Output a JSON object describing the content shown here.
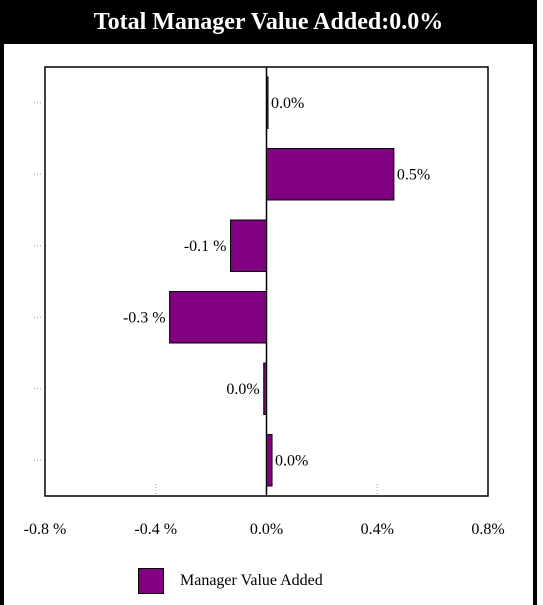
{
  "title": "Total Manager Value Added:0.0%",
  "colors": {
    "bar": "#800080",
    "title_bg": "#000000",
    "title_fg": "#ffffff"
  },
  "chart_data": {
    "type": "bar",
    "orientation": "horizontal",
    "series": [
      {
        "name": "Manager Value Added",
        "values": [
          0.0,
          0.46,
          -0.13,
          -0.35,
          -0.01,
          0.02
        ],
        "labels": [
          "0.0%",
          "0.5%",
          "-0.1 %",
          "-0.3 %",
          "0.0%",
          "0.0%"
        ]
      }
    ],
    "xlim": [
      -0.8,
      0.8
    ],
    "xticks": [
      -0.8,
      -0.4,
      0.0,
      0.4,
      0.8
    ],
    "xtick_labels": [
      "-0.8 %",
      "-0.4 %",
      "0.0%",
      "0.4%",
      "0.8%"
    ],
    "grid": "dotted",
    "legend_position": "bottom"
  }
}
